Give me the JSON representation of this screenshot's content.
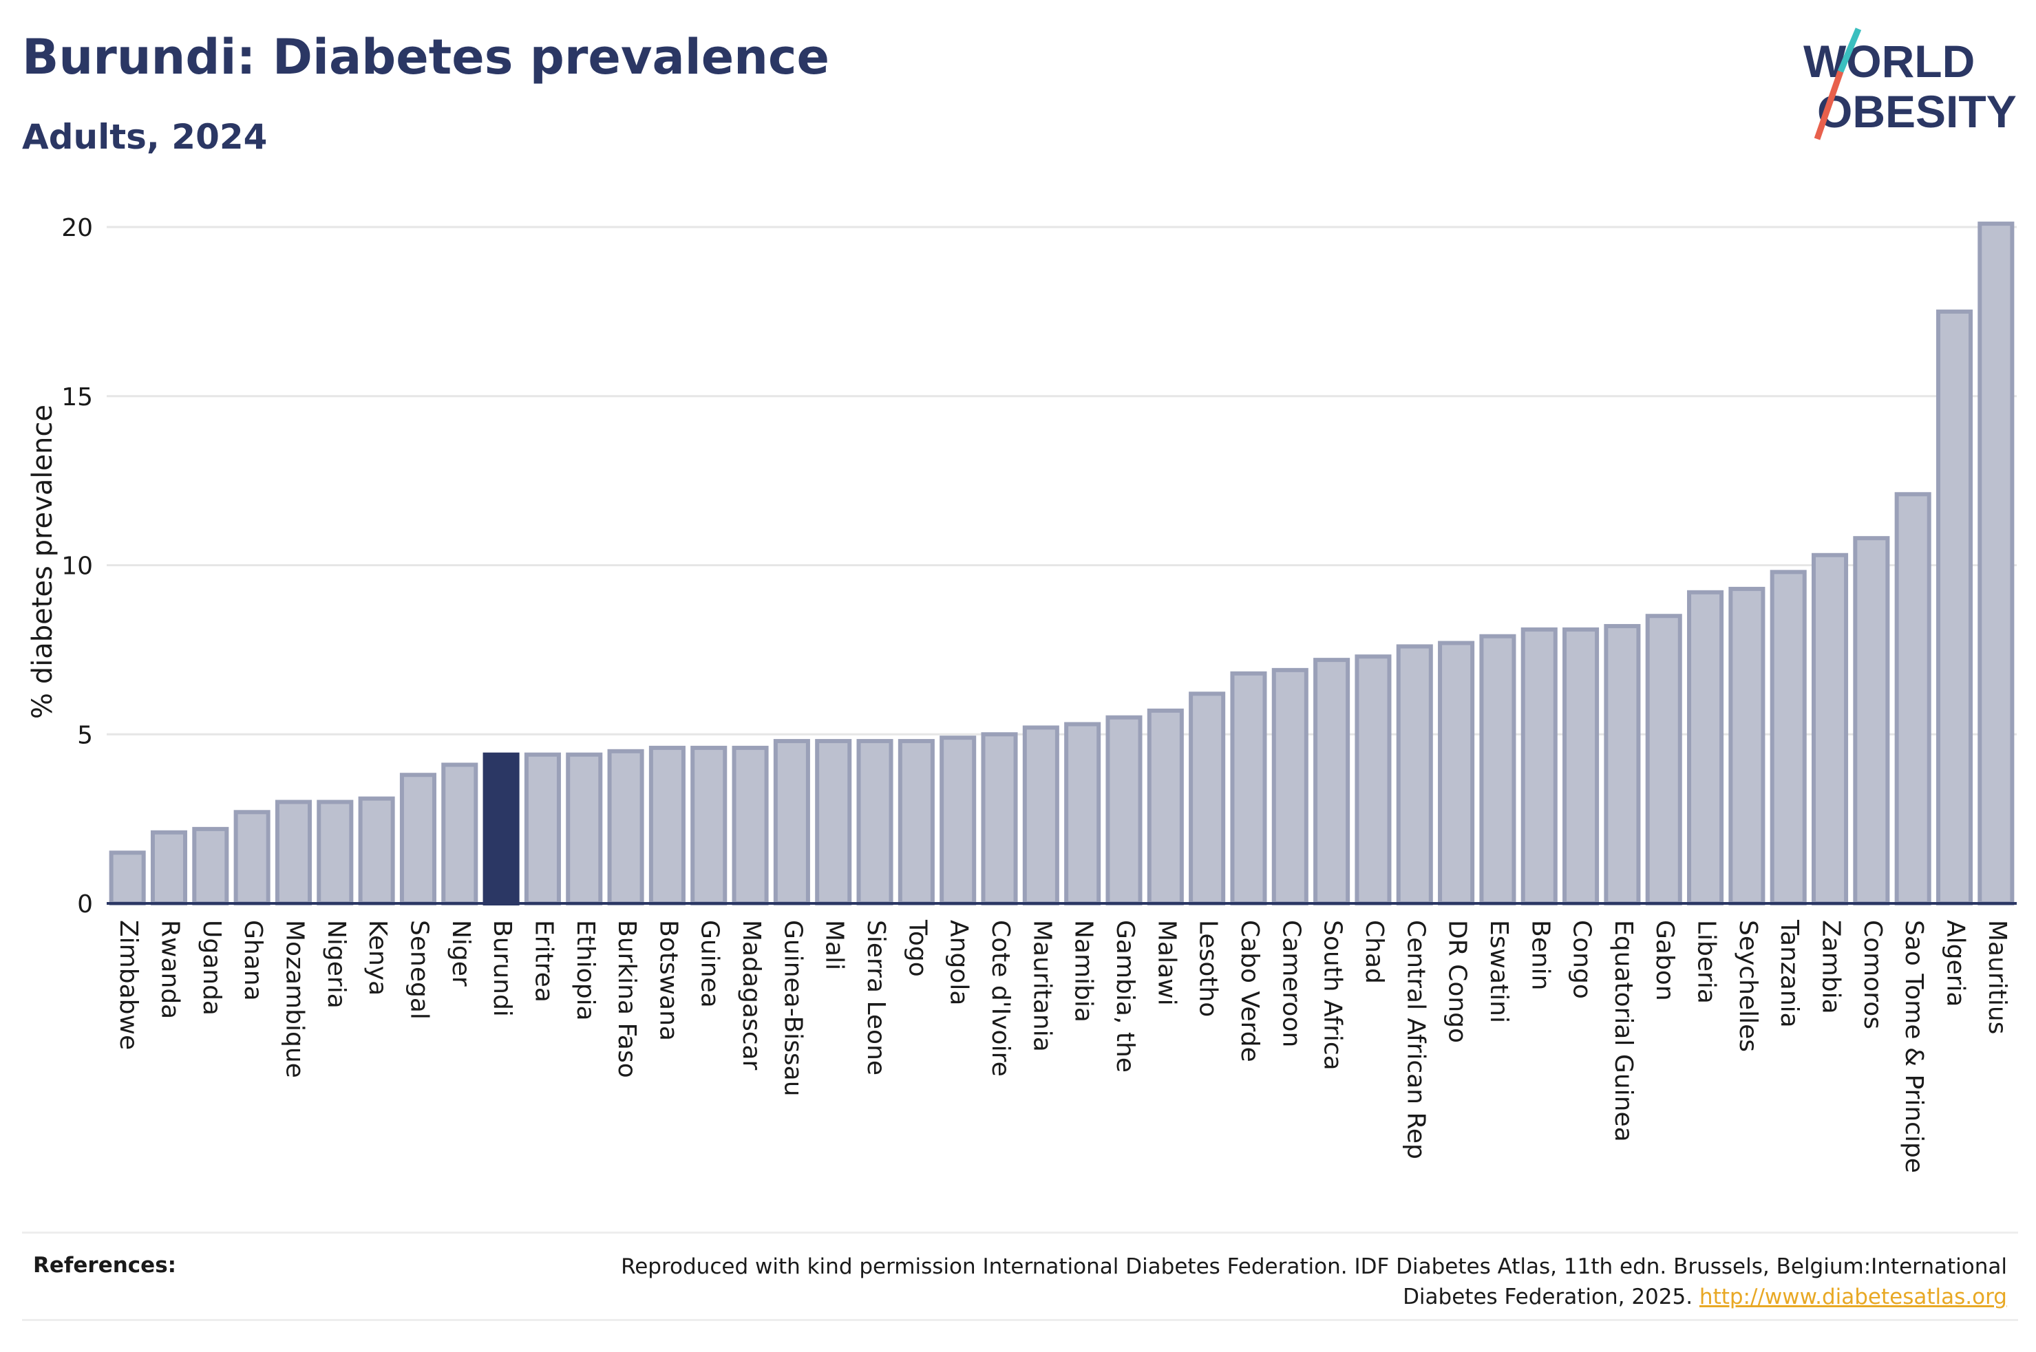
{
  "header": {
    "title": "Burundi: Diabetes prevalence",
    "subtitle": "Adults, 2024"
  },
  "logo": {
    "line1": "WORLD",
    "line2": "OBESITY"
  },
  "colors": {
    "highlight": "#2b3764",
    "bar_fill": "#bcc0cf",
    "bar_stroke": "#9aa0b8",
    "grid": "#e6e6e6",
    "axis": "#2b3764",
    "link": "#e8a824",
    "logo_slash_top": "#3bbfbf",
    "logo_slash_bottom": "#e8604c"
  },
  "chart_data": {
    "type": "bar",
    "ylabel": "% diabetes prevalence",
    "xlabel": "",
    "ylim": [
      0,
      20.5
    ],
    "yticks": [
      0,
      5,
      10,
      15,
      20
    ],
    "grid": true,
    "highlight_category": "Burundi",
    "categories": [
      "Zimbabwe",
      "Rwanda",
      "Uganda",
      "Ghana",
      "Mozambique",
      "Nigeria",
      "Kenya",
      "Senegal",
      "Niger",
      "Burundi",
      "Eritrea",
      "Ethiopia",
      "Burkina Faso",
      "Botswana",
      "Guinea",
      "Madagascar",
      "Guinea-Bissau",
      "Mali",
      "Sierra Leone",
      "Togo",
      "Angola",
      "Cote d'Ivoire",
      "Mauritania",
      "Namibia",
      "Gambia, the",
      "Malawi",
      "Lesotho",
      "Cabo Verde",
      "Cameroon",
      "South Africa",
      "Chad",
      "Central African Rep",
      "DR Congo",
      "Eswatini",
      "Benin",
      "Congo",
      "Equatorial Guinea",
      "Gabon",
      "Liberia",
      "Seychelles",
      "Tanzania",
      "Zambia",
      "Comoros",
      "Sao Tome & Principe",
      "Algeria",
      "Mauritius"
    ],
    "values": [
      1.5,
      2.1,
      2.2,
      2.7,
      3.0,
      3.0,
      3.1,
      3.8,
      4.1,
      4.4,
      4.4,
      4.4,
      4.5,
      4.6,
      4.6,
      4.6,
      4.8,
      4.8,
      4.8,
      4.8,
      4.9,
      5.0,
      5.2,
      5.3,
      5.5,
      5.7,
      6.2,
      6.8,
      6.9,
      7.2,
      7.3,
      7.6,
      7.7,
      7.9,
      8.1,
      8.1,
      8.2,
      8.5,
      9.2,
      9.3,
      9.8,
      10.3,
      10.8,
      12.1,
      17.5,
      20.1
    ]
  },
  "references": {
    "label": "References:",
    "text": "Reproduced with kind permission International Diabetes Federation. IDF Diabetes Atlas, 11th edn. Brussels, Belgium:International Diabetes Federation, 2025.",
    "link": "http://www.diabetesatlas.org"
  }
}
